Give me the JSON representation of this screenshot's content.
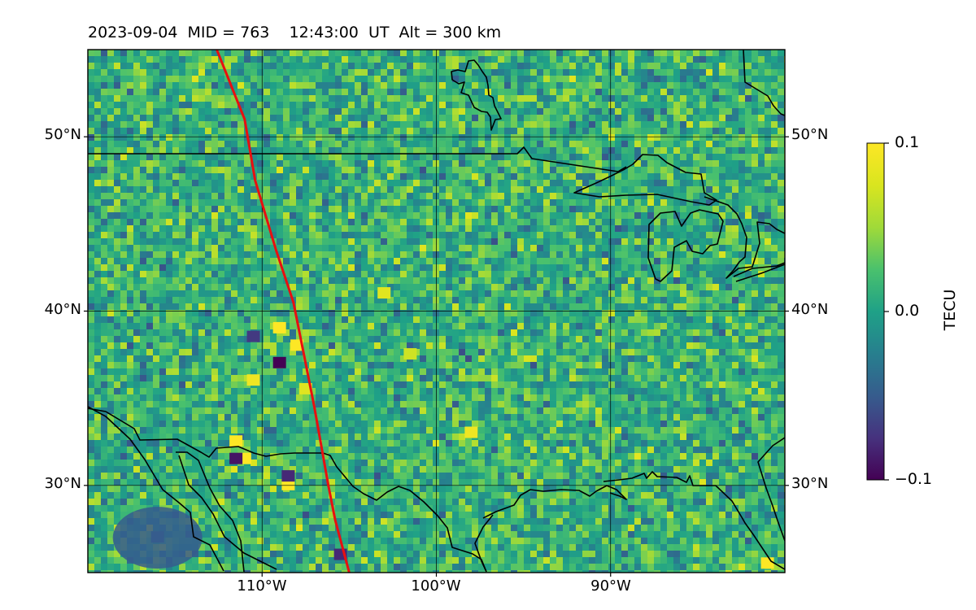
{
  "title": "2023-09-04  MID = 763    12:43:00  UT  Alt = 300 km",
  "axes": {
    "lon_range": [
      -120,
      -80
    ],
    "lat_range": [
      25,
      55
    ],
    "lon_ticks": [
      {
        "value": -110,
        "label": "110°W"
      },
      {
        "value": -100,
        "label": "100°W"
      },
      {
        "value": -90,
        "label": "90°W"
      }
    ],
    "lat_ticks": [
      {
        "value": 30,
        "label": "30°N"
      },
      {
        "value": 40,
        "label": "40°N"
      },
      {
        "value": 50,
        "label": "50°N"
      }
    ],
    "grid": true
  },
  "colorbar": {
    "label": "TECU",
    "colormap": "viridis",
    "range": [
      -0.1,
      0.1
    ],
    "ticks": [
      {
        "value": 0.1,
        "label": "0.1"
      },
      {
        "value": 0.0,
        "label": "0.0"
      },
      {
        "value": -0.1,
        "label": "−0.1"
      }
    ]
  },
  "colors": {
    "terminator_line": "#e81010",
    "coastline": "#000000",
    "grid": "#000000"
  },
  "chart_data": {
    "type": "heatmap",
    "title": "2023-09-04  MID = 763    12:43:00  UT  Alt = 300 km",
    "xlabel": "",
    "ylabel": "",
    "colorbar_label": "TECU",
    "value_range": [
      -0.1,
      0.1
    ],
    "background_value": 0.0,
    "hotspots": [
      {
        "lon": -109.0,
        "lat": 39.0,
        "value": 0.1
      },
      {
        "lon": -108.0,
        "lat": 38.0,
        "value": 0.1
      },
      {
        "lon": -110.5,
        "lat": 36.0,
        "value": 0.09
      },
      {
        "lon": -111.5,
        "lat": 32.5,
        "value": 0.1
      },
      {
        "lon": -111.0,
        "lat": 31.5,
        "value": 0.1
      },
      {
        "lon": -108.5,
        "lat": 30.0,
        "value": 0.1
      },
      {
        "lon": -107.5,
        "lat": 35.5,
        "value": 0.08
      },
      {
        "lon": -103.0,
        "lat": 41.0,
        "value": 0.08
      },
      {
        "lon": -101.5,
        "lat": 37.5,
        "value": 0.07
      },
      {
        "lon": -98.0,
        "lat": 33.0,
        "value": 0.09
      },
      {
        "lon": -81.0,
        "lat": 25.5,
        "value": 0.1
      }
    ],
    "coldspots": [
      {
        "lon": -109.0,
        "lat": 37.0,
        "value": -0.1
      },
      {
        "lon": -111.5,
        "lat": 31.5,
        "value": -0.09
      },
      {
        "lon": -108.5,
        "lat": 30.5,
        "value": -0.08
      },
      {
        "lon": -105.5,
        "lat": 26.0,
        "value": -0.08
      },
      {
        "lon": -110.5,
        "lat": 38.5,
        "value": -0.07
      },
      {
        "lon": -116.0,
        "lat": 27.0,
        "value": -0.05
      }
    ],
    "terminator": [
      {
        "lon": -112.6,
        "lat": 55.0
      },
      {
        "lon": -111.0,
        "lat": 51.0
      },
      {
        "lon": -110.4,
        "lat": 47.5
      },
      {
        "lon": -109.2,
        "lat": 43.5
      },
      {
        "lon": -108.2,
        "lat": 40.5
      },
      {
        "lon": -107.6,
        "lat": 37.5
      },
      {
        "lon": -107.0,
        "lat": 34.5
      },
      {
        "lon": -106.2,
        "lat": 30.0
      },
      {
        "lon": -105.8,
        "lat": 28.0
      },
      {
        "lon": -105.0,
        "lat": 25.0
      }
    ]
  }
}
